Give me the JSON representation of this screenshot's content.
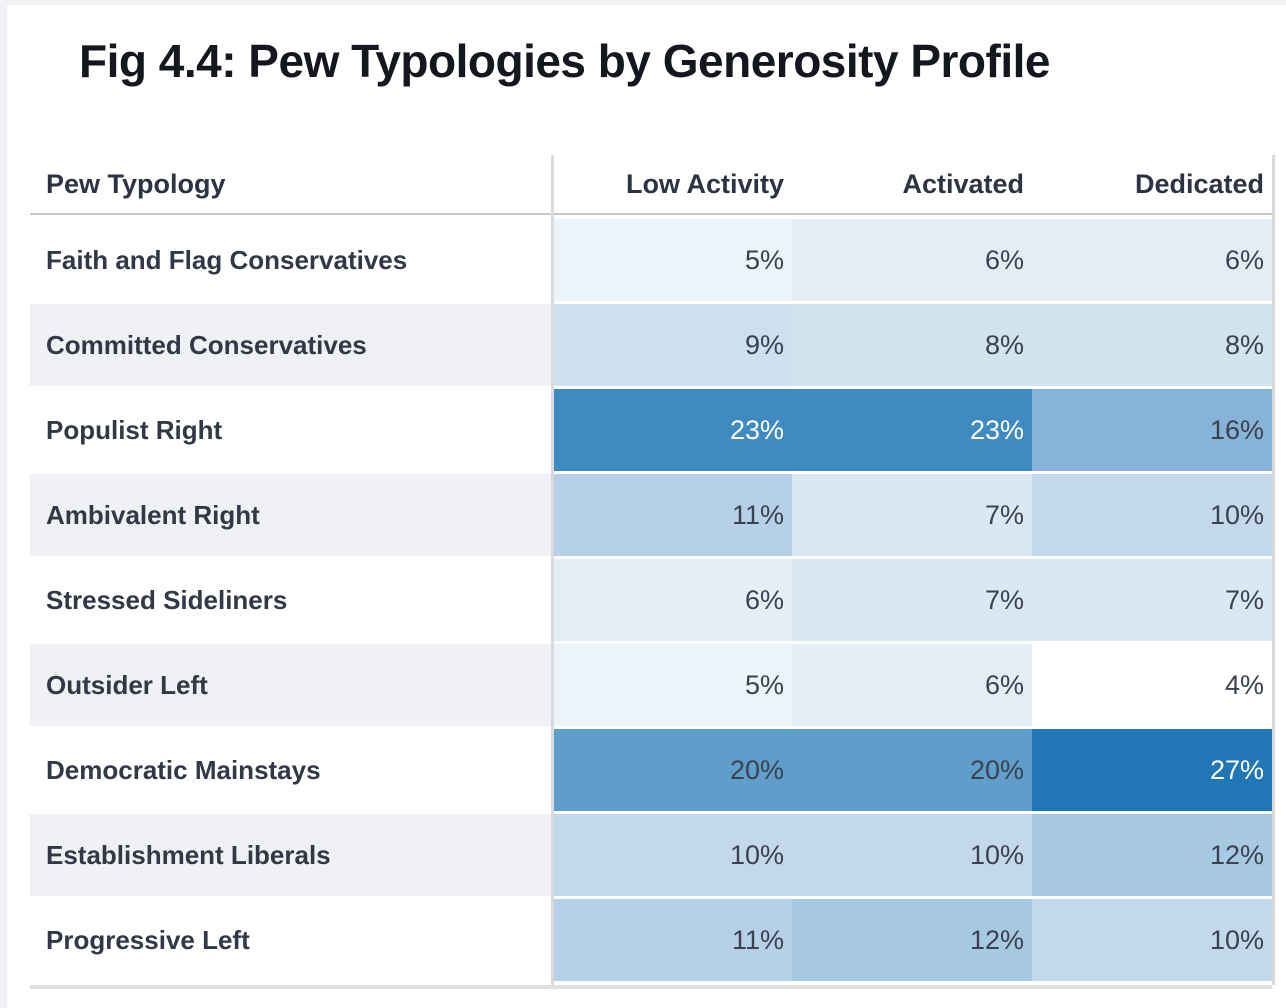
{
  "page": {
    "title": "Fig 4.4: Pew Typologies by Generosity Profile"
  },
  "chart_data": {
    "type": "heatmap",
    "title": "Fig 4.4: Pew Typologies by Generosity Profile",
    "row_header": "Pew Typology",
    "columns": [
      "Low Activity",
      "Activated",
      "Dedicated"
    ],
    "rows": [
      {
        "label": "Faith and Flag Conservatives",
        "values": [
          5,
          6,
          6
        ]
      },
      {
        "label": "Committed Conservatives",
        "values": [
          9,
          8,
          8
        ]
      },
      {
        "label": "Populist Right",
        "values": [
          23,
          23,
          16
        ]
      },
      {
        "label": "Ambivalent Right",
        "values": [
          11,
          7,
          10
        ]
      },
      {
        "label": "Stressed Sideliners",
        "values": [
          6,
          7,
          7
        ]
      },
      {
        "label": "Outsider Left",
        "values": [
          5,
          6,
          4
        ]
      },
      {
        "label": "Democratic Mainstays",
        "values": [
          20,
          20,
          27
        ]
      },
      {
        "label": "Establishment Liberals",
        "values": [
          10,
          10,
          12
        ]
      },
      {
        "label": "Progressive Left",
        "values": [
          11,
          12,
          10
        ]
      }
    ],
    "value_format": "percent",
    "color_scale": {
      "min_value": 4,
      "max_value": 27,
      "min_color": "#ffffff",
      "max_color": "#2176b5"
    },
    "value_colors": {
      "4": "#ffffff",
      "5": "#edf4f9",
      "6": "#e3eef6",
      "7": "#dae8f2",
      "8": "#d2e3f0",
      "9": "#cde0ee",
      "10": "#c3d8ea",
      "11": "#b6d1e7",
      "12": "#a8c9e2",
      "16": "#87b3d8",
      "20": "#5f9dcb",
      "23": "#3e8ac1",
      "27": "#2176b5"
    },
    "white_text_threshold": 22
  },
  "colors": {
    "frame": "#f1f2f6",
    "underline": "#c7c8cc",
    "divider": "#d9dadd",
    "bottomline": "#dfe0e3",
    "alt_row": "#f0f1f4",
    "text_title": "#15171e",
    "text_header": "#2d3340",
    "text_label": "#323845",
    "text_dark": "#3b4150",
    "text_light": "#ffffff"
  }
}
